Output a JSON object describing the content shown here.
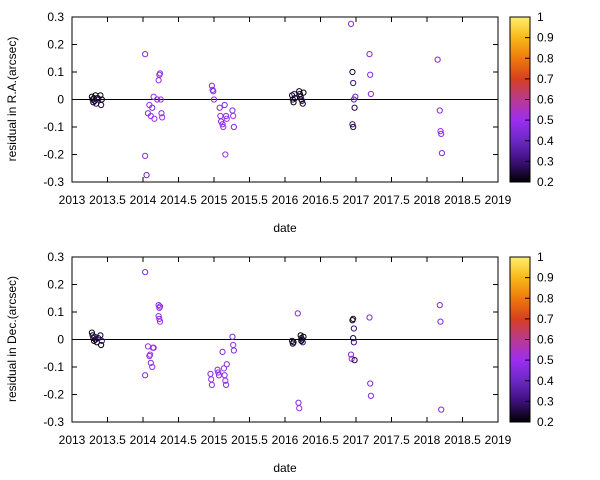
{
  "colors": {
    "axis": "#000000",
    "zero_line": "#000000",
    "palette": [
      "#000000",
      "#3d0f7a",
      "#6b28c4",
      "#9c2ef0",
      "#b83a8f",
      "#d6401f",
      "#ee7a0c",
      "#f8b81a",
      "#fff06a"
    ]
  },
  "colorbar": {
    "range": [
      0.2,
      1.0
    ],
    "tick_labels": [
      "0.2",
      "0.3",
      "0.4",
      "0.5",
      "0.6",
      "0.7",
      "0.8",
      "0.9",
      "1"
    ],
    "tick_values": [
      0.2,
      0.3,
      0.4,
      0.5,
      0.6,
      0.7,
      0.8,
      0.9,
      1.0
    ]
  },
  "chart_data": [
    {
      "type": "scatter",
      "xlabel": "date",
      "ylabel": "residual in R.A.(arcsec)",
      "xlim": [
        2013,
        2019
      ],
      "ylim": [
        -0.3,
        0.3
      ],
      "x_tick_values": [
        2013,
        2013.5,
        2014,
        2014.5,
        2015,
        2015.5,
        2016,
        2016.5,
        2017,
        2017.5,
        2018,
        2018.5,
        2019
      ],
      "x_tick_labels": [
        "2013",
        "2013.5",
        "2014",
        "2014.5",
        "2015",
        "2015.5",
        "2016",
        "2016.5",
        "2017",
        "2017.5",
        "2018",
        "2018.5",
        "2019"
      ],
      "y_tick_values": [
        -0.3,
        -0.2,
        -0.1,
        0,
        0.1,
        0.2,
        0.3
      ],
      "y_tick_labels": [
        "-0.3",
        "-0.2",
        "-0.1",
        "0",
        "0.1",
        "0.2",
        "0.3"
      ],
      "zero_line": true,
      "marker": "open-circle",
      "points": [
        [
          2013.28,
          0.01,
          0.2
        ],
        [
          2013.29,
          0.0,
          0.22
        ],
        [
          2013.3,
          -0.01,
          0.2
        ],
        [
          2013.31,
          0.005,
          0.25
        ],
        [
          2013.32,
          -0.005,
          0.22
        ],
        [
          2013.33,
          0.015,
          0.2
        ],
        [
          2013.34,
          -0.015,
          0.28
        ],
        [
          2013.36,
          0.005,
          0.2
        ],
        [
          2013.37,
          0.0,
          0.3
        ],
        [
          2013.4,
          0.015,
          0.22
        ],
        [
          2013.41,
          -0.02,
          0.25
        ],
        [
          2013.42,
          0.0,
          0.2
        ],
        [
          2014.03,
          0.165,
          0.45
        ],
        [
          2014.03,
          -0.205,
          0.45
        ],
        [
          2014.05,
          -0.275,
          0.4
        ],
        [
          2014.07,
          -0.05,
          0.45
        ],
        [
          2014.09,
          -0.02,
          0.5
        ],
        [
          2014.11,
          -0.06,
          0.5
        ],
        [
          2014.13,
          -0.03,
          0.45
        ],
        [
          2014.15,
          0.01,
          0.5
        ],
        [
          2014.16,
          -0.07,
          0.5
        ],
        [
          2014.2,
          0.0,
          0.45
        ],
        [
          2014.22,
          0.07,
          0.5
        ],
        [
          2014.23,
          0.09,
          0.45
        ],
        [
          2014.24,
          0.095,
          0.5
        ],
        [
          2014.25,
          0.0,
          0.5
        ],
        [
          2014.26,
          -0.05,
          0.45
        ],
        [
          2014.27,
          -0.065,
          0.5
        ],
        [
          2014.97,
          0.05,
          0.45
        ],
        [
          2014.98,
          0.035,
          0.5
        ],
        [
          2014.99,
          0.03,
          0.45
        ],
        [
          2015.0,
          0.0,
          0.45
        ],
        [
          2015.08,
          -0.03,
          0.45
        ],
        [
          2015.09,
          -0.06,
          0.5
        ],
        [
          2015.1,
          -0.08,
          0.45
        ],
        [
          2015.12,
          -0.09,
          0.45
        ],
        [
          2015.13,
          -0.1,
          0.5
        ],
        [
          2015.15,
          -0.02,
          0.45
        ],
        [
          2015.16,
          -0.2,
          0.5
        ],
        [
          2015.17,
          -0.06,
          0.45
        ],
        [
          2015.18,
          -0.07,
          0.5
        ],
        [
          2015.26,
          -0.04,
          0.45
        ],
        [
          2015.27,
          -0.06,
          0.5
        ],
        [
          2015.28,
          -0.1,
          0.45
        ],
        [
          2016.1,
          0.015,
          0.2
        ],
        [
          2016.11,
          0.0,
          0.25
        ],
        [
          2016.12,
          -0.01,
          0.2
        ],
        [
          2016.13,
          0.02,
          0.3
        ],
        [
          2016.14,
          0.005,
          0.22
        ],
        [
          2016.2,
          0.03,
          0.2
        ],
        [
          2016.21,
          0.02,
          0.25
        ],
        [
          2016.22,
          0.01,
          0.2
        ],
        [
          2016.23,
          0.0,
          0.22
        ],
        [
          2016.24,
          -0.005,
          0.3
        ],
        [
          2016.25,
          -0.015,
          0.25
        ],
        [
          2016.26,
          0.025,
          0.2
        ],
        [
          2016.93,
          0.275,
          0.45
        ],
        [
          2016.95,
          0.1,
          0.25
        ],
        [
          2016.96,
          0.06,
          0.3
        ],
        [
          2016.97,
          0.0,
          0.35
        ],
        [
          2016.98,
          -0.03,
          0.25
        ],
        [
          2016.95,
          -0.09,
          0.3
        ],
        [
          2016.96,
          -0.1,
          0.25
        ],
        [
          2016.99,
          0.01,
          0.4
        ],
        [
          2017.19,
          0.165,
          0.45
        ],
        [
          2017.2,
          0.09,
          0.45
        ],
        [
          2017.21,
          0.02,
          0.45
        ],
        [
          2018.15,
          0.145,
          0.45
        ],
        [
          2018.18,
          -0.04,
          0.45
        ],
        [
          2018.19,
          -0.115,
          0.5
        ],
        [
          2018.2,
          -0.125,
          0.45
        ],
        [
          2018.21,
          -0.195,
          0.45
        ]
      ]
    },
    {
      "type": "scatter",
      "xlabel": "date",
      "ylabel": "residual in Dec.(arcsec)",
      "xlim": [
        2013,
        2019
      ],
      "ylim": [
        -0.3,
        0.3
      ],
      "x_tick_values": [
        2013,
        2013.5,
        2014,
        2014.5,
        2015,
        2015.5,
        2016,
        2016.5,
        2017,
        2017.5,
        2018,
        2018.5,
        2019
      ],
      "x_tick_labels": [
        "2013",
        "2013.5",
        "2014",
        "2014.5",
        "2015",
        "2015.5",
        "2016",
        "2016.5",
        "2017",
        "2017.5",
        "2018",
        "2018.5",
        "2019"
      ],
      "y_tick_values": [
        -0.3,
        -0.2,
        -0.1,
        0,
        0.1,
        0.2,
        0.3
      ],
      "y_tick_labels": [
        "-0.3",
        "-0.2",
        "-0.1",
        "0",
        "0.1",
        "0.2",
        "0.3"
      ],
      "zero_line": true,
      "marker": "open-circle",
      "points": [
        [
          2013.28,
          0.025,
          0.22
        ],
        [
          2013.29,
          0.015,
          0.2
        ],
        [
          2013.3,
          0.005,
          0.25
        ],
        [
          2013.31,
          -0.005,
          0.2
        ],
        [
          2013.32,
          0.01,
          0.3
        ],
        [
          2013.33,
          0.0,
          0.22
        ],
        [
          2013.35,
          -0.01,
          0.2
        ],
        [
          2013.37,
          0.005,
          0.25
        ],
        [
          2013.4,
          0.015,
          0.22
        ],
        [
          2013.41,
          -0.02,
          0.2
        ],
        [
          2013.42,
          -0.005,
          0.3
        ],
        [
          2014.03,
          0.245,
          0.45
        ],
        [
          2014.03,
          -0.13,
          0.45
        ],
        [
          2014.07,
          -0.025,
          0.5
        ],
        [
          2014.09,
          -0.06,
          0.45
        ],
        [
          2014.1,
          -0.055,
          0.5
        ],
        [
          2014.11,
          -0.085,
          0.45
        ],
        [
          2014.13,
          -0.1,
          0.5
        ],
        [
          2014.14,
          -0.03,
          0.45
        ],
        [
          2014.15,
          -0.03,
          0.5
        ],
        [
          2014.22,
          0.125,
          0.45
        ],
        [
          2014.23,
          0.115,
          0.5
        ],
        [
          2014.24,
          0.12,
          0.45
        ],
        [
          2014.22,
          0.085,
          0.5
        ],
        [
          2014.23,
          0.075,
          0.45
        ],
        [
          2014.24,
          0.065,
          0.5
        ],
        [
          2014.95,
          -0.125,
          0.45
        ],
        [
          2014.96,
          -0.145,
          0.5
        ],
        [
          2014.97,
          -0.165,
          0.45
        ],
        [
          2015.05,
          -0.11,
          0.45
        ],
        [
          2015.06,
          -0.12,
          0.5
        ],
        [
          2015.07,
          -0.13,
          0.45
        ],
        [
          2015.12,
          -0.045,
          0.45
        ],
        [
          2015.14,
          -0.105,
          0.5
        ],
        [
          2015.15,
          -0.13,
          0.45
        ],
        [
          2015.16,
          -0.15,
          0.5
        ],
        [
          2015.17,
          -0.165,
          0.45
        ],
        [
          2015.18,
          -0.09,
          0.45
        ],
        [
          2015.26,
          0.01,
          0.45
        ],
        [
          2015.27,
          -0.02,
          0.5
        ],
        [
          2015.28,
          -0.04,
          0.45
        ],
        [
          2016.1,
          -0.005,
          0.22
        ],
        [
          2016.11,
          -0.015,
          0.25
        ],
        [
          2016.12,
          -0.01,
          0.2
        ],
        [
          2016.18,
          0.095,
          0.45
        ],
        [
          2016.19,
          -0.23,
          0.45
        ],
        [
          2016.2,
          -0.25,
          0.5
        ],
        [
          2016.22,
          0.015,
          0.2
        ],
        [
          2016.23,
          0.005,
          0.25
        ],
        [
          2016.24,
          0.0,
          0.22
        ],
        [
          2016.25,
          -0.01,
          0.3
        ],
        [
          2016.26,
          0.01,
          0.2
        ],
        [
          2016.23,
          -0.005,
          0.2
        ],
        [
          2016.93,
          -0.055,
          0.45
        ],
        [
          2016.94,
          -0.07,
          0.5
        ],
        [
          2016.95,
          0.07,
          0.2
        ],
        [
          2016.96,
          0.075,
          0.25
        ],
        [
          2016.97,
          0.04,
          0.3
        ],
        [
          2016.96,
          0.005,
          0.25
        ],
        [
          2016.97,
          -0.01,
          0.3
        ],
        [
          2016.98,
          -0.075,
          0.25
        ],
        [
          2017.19,
          0.08,
          0.45
        ],
        [
          2017.2,
          -0.16,
          0.45
        ],
        [
          2017.21,
          -0.205,
          0.45
        ],
        [
          2018.18,
          0.125,
          0.45
        ],
        [
          2018.19,
          0.065,
          0.45
        ],
        [
          2018.2,
          -0.255,
          0.45
        ]
      ]
    }
  ]
}
